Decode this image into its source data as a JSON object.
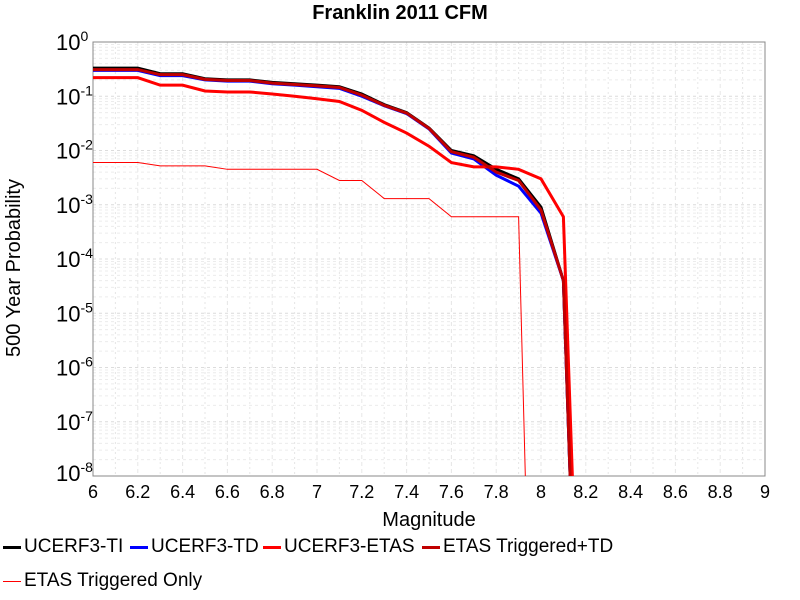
{
  "chart_data": {
    "type": "line",
    "title": "Franklin 2011 CFM",
    "xlabel": "Magnitude",
    "ylabel": "500 Year Probability",
    "xlim": [
      6,
      9
    ],
    "ylim": [
      1e-08,
      1
    ],
    "yscale": "log",
    "grid": true,
    "legend_position": "bottom",
    "x_ticks": [
      "6",
      "6.2",
      "6.4",
      "6.6",
      "6.8",
      "7",
      "7.2",
      "7.4",
      "7.6",
      "7.8",
      "8",
      "8.2",
      "8.4",
      "8.6",
      "8.8",
      "9"
    ],
    "y_ticks": [
      {
        "base": "10",
        "exp": "0"
      },
      {
        "base": "10",
        "exp": "-1"
      },
      {
        "base": "10",
        "exp": "-2"
      },
      {
        "base": "10",
        "exp": "-3"
      },
      {
        "base": "10",
        "exp": "-4"
      },
      {
        "base": "10",
        "exp": "-5"
      },
      {
        "base": "10",
        "exp": "-6"
      },
      {
        "base": "10",
        "exp": "-7"
      },
      {
        "base": "10",
        "exp": "-8"
      }
    ],
    "series": [
      {
        "name": "UCERF3-TI",
        "color": "#000000",
        "width": 3,
        "x": [
          6.0,
          6.1,
          6.2,
          6.3,
          6.4,
          6.5,
          6.6,
          6.7,
          6.8,
          6.9,
          7.0,
          7.1,
          7.2,
          7.3,
          7.4,
          7.5,
          7.6,
          7.7,
          7.8,
          7.9,
          8.0,
          8.1,
          8.13
        ],
        "y": [
          0.33,
          0.33,
          0.33,
          0.26,
          0.26,
          0.21,
          0.2,
          0.2,
          0.18,
          0.17,
          0.16,
          0.15,
          0.11,
          0.07,
          0.05,
          0.026,
          0.01,
          0.008,
          0.0045,
          0.003,
          0.0009,
          4e-05,
          1e-08
        ]
      },
      {
        "name": "UCERF3-TD",
        "color": "#0000ff",
        "width": 3,
        "x": [
          6.0,
          6.1,
          6.2,
          6.3,
          6.4,
          6.5,
          6.6,
          6.7,
          6.8,
          6.9,
          7.0,
          7.1,
          7.2,
          7.3,
          7.4,
          7.5,
          7.6,
          7.7,
          7.8,
          7.9,
          8.0,
          8.1,
          8.13
        ],
        "y": [
          0.3,
          0.3,
          0.3,
          0.24,
          0.24,
          0.2,
          0.19,
          0.19,
          0.17,
          0.16,
          0.15,
          0.14,
          0.1,
          0.067,
          0.048,
          0.025,
          0.009,
          0.007,
          0.0035,
          0.0022,
          0.0007,
          4e-05,
          1e-08
        ]
      },
      {
        "name": "UCERF3-ETAS",
        "color": "#ff0000",
        "width": 3,
        "x": [
          6.0,
          6.1,
          6.2,
          6.3,
          6.4,
          6.5,
          6.6,
          6.7,
          6.8,
          6.9,
          7.0,
          7.1,
          7.2,
          7.3,
          7.4,
          7.5,
          7.6,
          7.7,
          7.8,
          7.9,
          8.0,
          8.1,
          8.14
        ],
        "y": [
          0.22,
          0.22,
          0.22,
          0.16,
          0.16,
          0.125,
          0.12,
          0.12,
          0.11,
          0.1,
          0.09,
          0.08,
          0.055,
          0.033,
          0.021,
          0.012,
          0.006,
          0.005,
          0.005,
          0.0045,
          0.003,
          0.0006,
          1e-08
        ]
      },
      {
        "name": "ETAS Triggered+TD",
        "color": "#c00000",
        "width": 3,
        "x": [
          6.0,
          6.1,
          6.2,
          6.3,
          6.4,
          6.5,
          6.6,
          6.7,
          6.8,
          6.9,
          7.0,
          7.1,
          7.2,
          7.3,
          7.4,
          7.5,
          7.6,
          7.7,
          7.8,
          7.9,
          8.0,
          8.1,
          8.13
        ],
        "y": [
          0.31,
          0.31,
          0.31,
          0.25,
          0.25,
          0.205,
          0.195,
          0.195,
          0.175,
          0.165,
          0.155,
          0.145,
          0.105,
          0.068,
          0.049,
          0.0255,
          0.0095,
          0.0075,
          0.004,
          0.0028,
          0.0008,
          4e-05,
          1e-08
        ]
      },
      {
        "name": "ETAS Triggered Only",
        "color": "#ff0000",
        "width": 1,
        "x": [
          6.0,
          6.1,
          6.2,
          6.3,
          6.4,
          6.5,
          6.6,
          6.7,
          6.8,
          6.9,
          7.0,
          7.1,
          7.2,
          7.3,
          7.4,
          7.5,
          7.6,
          7.7,
          7.8,
          7.9,
          7.93
        ],
        "y": [
          0.006,
          0.006,
          0.006,
          0.0052,
          0.0052,
          0.0052,
          0.0045,
          0.0045,
          0.0045,
          0.0045,
          0.0045,
          0.0028,
          0.0028,
          0.0013,
          0.0013,
          0.0013,
          0.0006,
          0.0006,
          0.0006,
          0.0006,
          1e-08
        ]
      }
    ]
  }
}
